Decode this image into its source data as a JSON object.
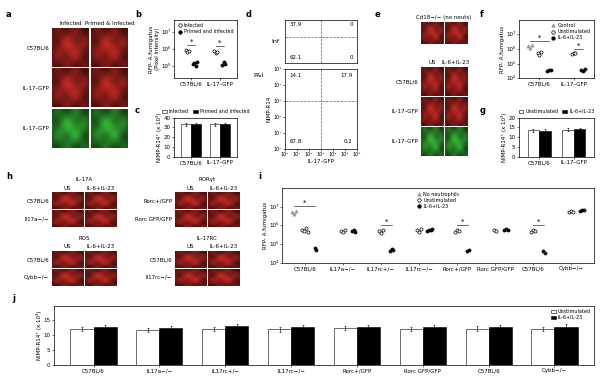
{
  "image_panels": [
    {
      "label": "a",
      "columns": [
        "Infected",
        "Primed & Infected"
      ],
      "rows": [
        "C57BL/6",
        "IL-17–GFP",
        "IL-17–GFP"
      ],
      "colors": [
        "#e0302a",
        "#e0302a",
        "#3fd23f"
      ]
    },
    {
      "label": "e",
      "inset": {
        "title": "Cd18−/− (no neuts)",
        "color": "#e0302a"
      },
      "columns": [
        "US",
        "IL-6+IL-23"
      ],
      "rows": [
        "C57BL/6",
        "IL-17–GFP",
        "IL-17–GFP"
      ],
      "colors": [
        "#e0302a",
        "#e0302a",
        "#3fd23f"
      ]
    },
    {
      "label": "h",
      "color": "#e0302a",
      "groups": [
        {
          "title": "IL-17A",
          "columns": [
            "US",
            "IL-6+IL-23"
          ],
          "rows": [
            "C57BL/6",
            "Il17a−/−"
          ]
        },
        {
          "title": "RORγt",
          "columns": [
            "US",
            "IL-6+IL-23"
          ],
          "rows": [
            "Rorc+/GFP",
            "Rorc GFP/GFP"
          ]
        },
        {
          "title": "ROS",
          "columns": [
            "US",
            "IL-6+IL-23"
          ],
          "rows": [
            "C57BL/6",
            "Cybb−/−"
          ]
        },
        {
          "title": "IL-17RC",
          "columns": [
            "US",
            "IL-6+IL-23"
          ],
          "rows": [
            "C57BL/6",
            "Il17rc−/−"
          ]
        }
      ]
    }
  ],
  "chart_data": [
    {
      "label": "b",
      "type": "scatter",
      "log": "y",
      "y_label": "RFP- A.fumigatus\n(Pixel intensity)",
      "categories": [
        "C57BL/6",
        "IL-17–GFP"
      ],
      "series": [
        {
          "name": "Infected",
          "color": "#000000",
          "marker": "circle_open",
          "values": [
            [
              900000,
              650000,
              750000
            ],
            [
              800000,
              550000,
              650000
            ]
          ]
        },
        {
          "name": "Primed and Infected",
          "color": "#000000",
          "marker": "circle_filled",
          "values": [
            [
              130000,
              160000,
              110000,
              180000
            ],
            [
              120000,
              170000,
              140000
            ]
          ]
        }
      ],
      "significance": [
        "*",
        "*"
      ],
      "ylim": [
        20000,
        50000000
      ],
      "yticks": [
        {
          "value": 100000,
          "label": "10⁵"
        },
        {
          "value": 1000000,
          "label": "10⁶"
        },
        {
          "value": 10000000,
          "label": "10⁷"
        }
      ],
      "legend": "upper right"
    },
    {
      "label": "c",
      "type": "bar",
      "y_label": "NIMP-R14⁺ (x 10³)",
      "categories": [
        "C57BL/6",
        "IL-17–GFP"
      ],
      "series": [
        {
          "name": "Infected",
          "color": "#ffffff",
          "values": [
            33,
            33
          ],
          "errors": [
            1.5,
            1.5
          ]
        },
        {
          "name": "Primed and Infected",
          "color": "#000000",
          "values": [
            33.5,
            33
          ],
          "errors": [
            1.5,
            1.5
          ]
        }
      ],
      "ylim": [
        0,
        40
      ],
      "yticks": [
        0,
        10,
        20,
        30,
        40
      ],
      "legend": "above"
    },
    {
      "label": "d",
      "type": "quadrant",
      "log": true,
      "x_label": "IL-17–GFP",
      "y_label": "NIMP-R14",
      "color": "#3b5bdb",
      "gate_x": 1000,
      "gate_y": 1000,
      "panels": [
        {
          "name": "Inf",
          "tick_labels": false,
          "xlim": [
            1,
            1000000
          ],
          "ylim": [
            1,
            100000
          ],
          "quadrants": {
            "upper_left": 37.9,
            "upper_right": 0,
            "lower_left": 62.1,
            "lower_right": 0
          }
        },
        {
          "name": "P&I",
          "xlim": [
            1,
            1000000
          ],
          "ylim": [
            1,
            100000
          ],
          "xticks": [
            {
              "value": 1,
              "label": "10⁰"
            },
            {
              "value": 10,
              "label": "10¹"
            },
            {
              "value": 100,
              "label": "10²"
            },
            {
              "value": 1000,
              "label": "10³"
            },
            {
              "value": 10000,
              "label": "10⁴"
            },
            {
              "value": 100000,
              "label": "10⁵"
            },
            {
              "value": 1000000,
              "label": "10⁶"
            }
          ],
          "yticks": [
            {
              "value": 1,
              "label": "10⁰"
            },
            {
              "value": 10,
              "label": "10¹"
            },
            {
              "value": 100,
              "label": "10²"
            },
            {
              "value": 1000,
              "label": "10³"
            },
            {
              "value": 10000,
              "label": "10⁴"
            },
            {
              "value": 100000,
              "label": "10⁵"
            }
          ],
          "quadrants": {
            "upper_left": 14.1,
            "upper_right": 17.9,
            "lower_left": 67.8,
            "lower_right": 0.2
          }
        }
      ]
    },
    {
      "label": "f",
      "type": "scatter",
      "log": "y",
      "y_label": "RFP- A.fumigatus",
      "categories": [
        "C57BL/6",
        "IL-17–GFP"
      ],
      "series": [
        {
          "name": "Control",
          "color": "#999999",
          "marker": "triangle",
          "values": [
            [
              1500000,
              1200000,
              1800000
            ],
            null
          ]
        },
        {
          "name": "Unstimulated",
          "color": "#000000",
          "marker": "circle_open",
          "values": [
            [
              500000,
              400000,
              600000
            ],
            [
              450000,
              550000,
              500000
            ]
          ]
        },
        {
          "name": "IL-6+IL-23",
          "color": "#000000",
          "marker": "circle_filled",
          "values": [
            [
              30000,
              40000,
              35000
            ],
            [
              35000,
              30000,
              45000
            ]
          ]
        }
      ],
      "significance": [
        "*",
        "*"
      ],
      "ylim": [
        10000,
        100000000
      ],
      "yticks": [
        {
          "value": 10000,
          "label": "10⁴"
        },
        {
          "value": 100000,
          "label": "10⁵"
        },
        {
          "value": 1000000,
          "label": "10⁶"
        },
        {
          "value": 10000000,
          "label": "10⁷"
        }
      ],
      "legend": "upper right"
    },
    {
      "label": "g",
      "type": "bar",
      "y_label": "NIMP-R14⁺ (x 10³)",
      "categories": [
        "C57BL/6",
        "IL-17–GFP"
      ],
      "series": [
        {
          "name": "Unstimulated",
          "color": "#ffffff",
          "values": [
            13.5,
            13.8
          ],
          "errors": [
            0.8,
            0.8
          ]
        },
        {
          "name": "IL-6+IL-23",
          "color": "#000000",
          "values": [
            13.2,
            14.0
          ],
          "errors": [
            0.8,
            0.8
          ]
        }
      ],
      "ylim": [
        0,
        20
      ],
      "yticks": [
        0,
        5,
        10,
        15,
        20
      ],
      "legend": "above"
    },
    {
      "label": "i",
      "type": "scatter",
      "log": "y",
      "y_label": "RFP- A.fumigatus",
      "categories": [
        "C57BL/6",
        "IL17a−/−",
        "IL17rc+/−",
        "IL17rc−/−",
        "Rorc+/GFP",
        "Rorc GFP/GFP",
        "C57BL/6",
        "Cybb−/−"
      ],
      "series": [
        {
          "name": "No neutrophils",
          "color": "#999999",
          "marker": "triangle",
          "values": [
            [
              5000000,
              4000000,
              6000000
            ],
            null,
            null,
            null,
            null,
            null,
            null,
            null
          ]
        },
        {
          "name": "Unstimulated",
          "color": "#000000",
          "marker": "circle_open",
          "values": [
            [
              600000,
              500000,
              700000,
              450000
            ],
            [
              500000,
              450000,
              600000
            ],
            [
              500000,
              400000,
              600000
            ],
            [
              550000,
              450000,
              650000
            ],
            [
              450000,
              550000,
              500000
            ],
            [
              600000,
              500000
            ],
            [
              450000,
              550000,
              500000
            ],
            [
              5000000,
              6000000,
              5500000
            ]
          ]
        },
        {
          "name": "IL-6+IL-23",
          "color": "#000000",
          "marker": "circle_filled",
          "values": [
            [
              60000,
              50000
            ],
            [
              500000,
              600000,
              450000
            ],
            [
              40000,
              55000,
              50000
            ],
            [
              500000,
              600000,
              550000,
              650000
            ],
            [
              40000,
              50000
            ],
            [
              600000,
              650000,
              550000
            ],
            [
              40000,
              35000
            ],
            [
              6000000,
              7000000,
              6500000
            ]
          ]
        }
      ],
      "significance": [
        "*",
        null,
        "*",
        null,
        "*",
        null,
        "*",
        null
      ],
      "ylim": [
        10000,
        100000000
      ],
      "yticks": [
        {
          "value": 10000,
          "label": "10⁴"
        },
        {
          "value": 100000,
          "label": "10⁵"
        },
        {
          "value": 1000000,
          "label": "10⁶"
        },
        {
          "value": 10000000,
          "label": "10⁷"
        }
      ],
      "legend": "upper center"
    },
    {
      "label": "j",
      "type": "bar",
      "y_label": "NIMP-R14⁺ (x 10³)",
      "categories": [
        "C57BL/6",
        "IL17a−/−",
        "IL17rc+/−",
        "IL17rc−/−",
        "Rorc+/GFP",
        "Rorc GFP/GFP",
        "C57BL/6",
        "Cybb−/−"
      ],
      "series": [
        {
          "name": "Unstimulated",
          "color": "#ffffff",
          "values": [
            12,
            11.8,
            12.2,
            12,
            12.3,
            12.1,
            12.2,
            12
          ],
          "errors": [
            0.7,
            0.8,
            0.7,
            0.8,
            0.7,
            0.7,
            0.8,
            0.7
          ]
        },
        {
          "name": "IL-6+IL-23",
          "color": "#000000",
          "values": [
            12.8,
            12.5,
            13,
            12.7,
            12.8,
            12.9,
            12.7,
            12.9
          ],
          "errors": [
            0.8,
            0.7,
            0.8,
            0.7,
            0.8,
            0.7,
            0.8,
            0.8
          ]
        }
      ],
      "ylim": [
        0,
        20
      ],
      "yticks": [
        0,
        5,
        10,
        15
      ],
      "legend": "upper right"
    }
  ]
}
